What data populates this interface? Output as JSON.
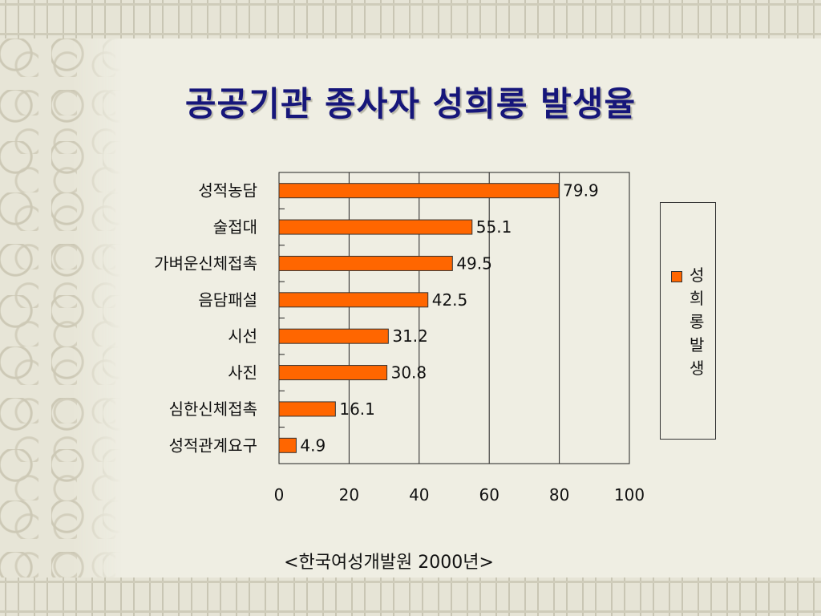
{
  "slide": {
    "title": "공공기관 종사자 성희롱 발생율",
    "source": "<한국여성개발원 2000년>"
  },
  "colors": {
    "bar": "#ff6600",
    "title": "#16167a"
  },
  "chart_data": {
    "type": "bar",
    "orientation": "horizontal",
    "categories": [
      "성적농담",
      "술접대",
      "가벼운신체접촉",
      "음담패설",
      "시선",
      "사진",
      "심한신체접촉",
      "성적관계요구"
    ],
    "series": [
      {
        "name": "성희롱발생",
        "values": [
          79.9,
          55.1,
          49.5,
          42.5,
          31.2,
          30.8,
          16.1,
          4.9
        ]
      }
    ],
    "xlim": [
      0,
      100
    ],
    "xticks": [
      0,
      20,
      40,
      60,
      80,
      100
    ],
    "grid": "vertical",
    "legend_position": "right"
  }
}
